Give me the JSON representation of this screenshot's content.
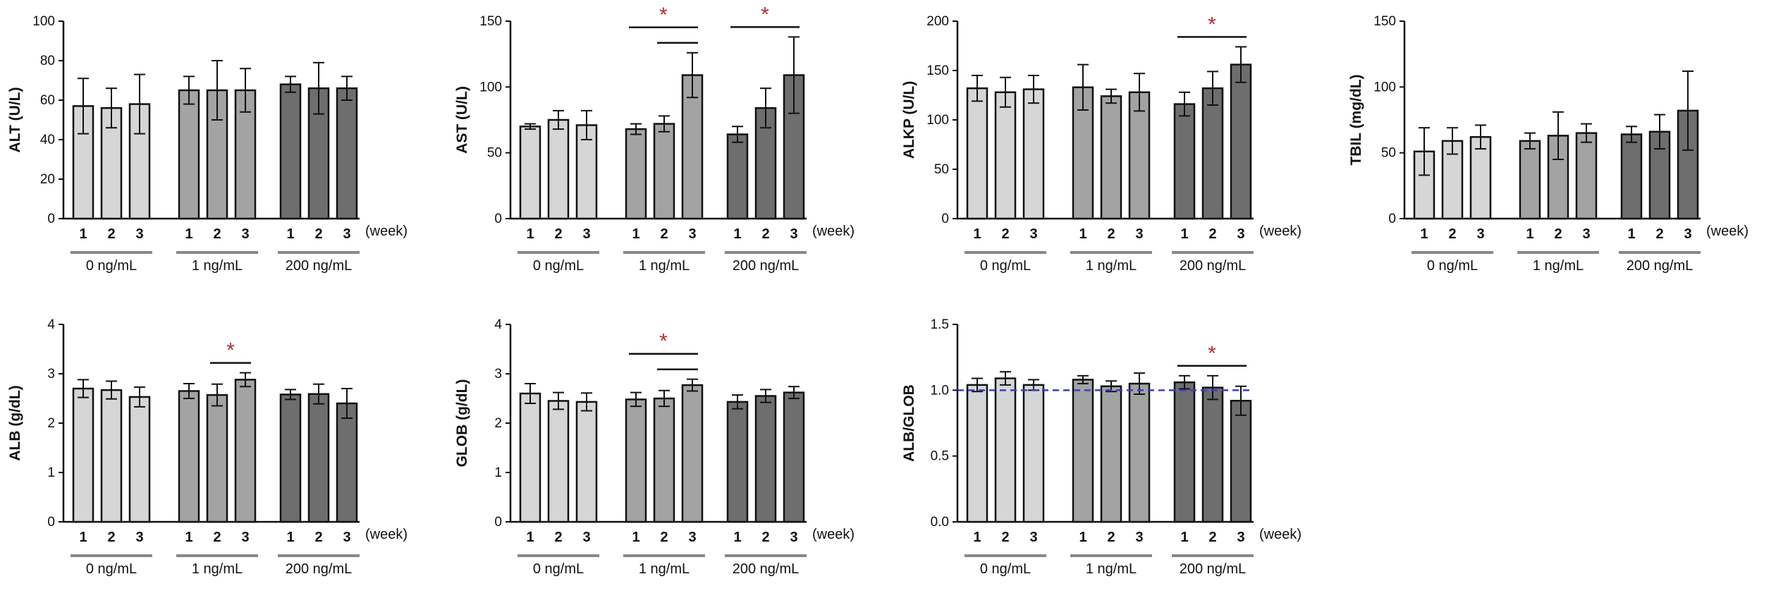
{
  "chart_data": [
    {
      "type": "bar",
      "id": "alt",
      "ylabel": "ALT (U/L)",
      "ylim": [
        0,
        100
      ],
      "yticks": [
        0,
        20,
        40,
        60,
        80,
        100
      ],
      "ytick_labels": [
        "0",
        "20",
        "40",
        "60",
        "80",
        "100"
      ],
      "x_unit": "(week)",
      "week_labels": [
        "1",
        "2",
        "3"
      ],
      "groups": [
        "0 ng/mL",
        "1 ng/mL",
        "200 ng/mL"
      ],
      "values": [
        [
          57,
          56,
          58
        ],
        [
          65,
          65,
          65
        ],
        [
          68,
          66,
          66
        ]
      ],
      "errors": [
        [
          14,
          10,
          15
        ],
        [
          7,
          15,
          11
        ],
        [
          4,
          13,
          6
        ]
      ],
      "significance": []
    },
    {
      "type": "bar",
      "id": "ast",
      "ylabel": "AST (U/L)",
      "ylim": [
        0,
        150
      ],
      "yticks": [
        0,
        50,
        100,
        150
      ],
      "ytick_labels": [
        "0",
        "50",
        "100",
        "150"
      ],
      "x_unit": "(week)",
      "week_labels": [
        "1",
        "2",
        "3"
      ],
      "groups": [
        "0 ng/mL",
        "1 ng/mL",
        "200 ng/mL"
      ],
      "values": [
        [
          70,
          75,
          71
        ],
        [
          68,
          72,
          109
        ],
        [
          64,
          84,
          109
        ]
      ],
      "errors": [
        [
          2,
          7,
          11
        ],
        [
          4,
          6,
          17
        ],
        [
          6,
          15,
          29
        ]
      ],
      "significance": [
        {
          "group": 1,
          "from": 0,
          "to": 2,
          "label": "*"
        },
        {
          "group": 1,
          "from": 1,
          "to": 2,
          "label": ""
        },
        {
          "group": 2,
          "from": 0,
          "to": 2,
          "label": "*"
        }
      ]
    },
    {
      "type": "bar",
      "id": "alkp",
      "ylabel": "ALKP (U/L)",
      "ylim": [
        0,
        200
      ],
      "yticks": [
        0,
        50,
        100,
        150,
        200
      ],
      "ytick_labels": [
        "0",
        "50",
        "100",
        "150",
        "200"
      ],
      "x_unit": "(week)",
      "week_labels": [
        "1",
        "2",
        "3"
      ],
      "groups": [
        "0 ng/mL",
        "1 ng/mL",
        "200 ng/mL"
      ],
      "values": [
        [
          132,
          128,
          131
        ],
        [
          133,
          124,
          128
        ],
        [
          116,
          132,
          156
        ]
      ],
      "errors": [
        [
          13,
          15,
          14
        ],
        [
          23,
          7,
          19
        ],
        [
          12,
          17,
          18
        ]
      ],
      "significance": [
        {
          "group": 2,
          "from": 0,
          "to": 2,
          "label": "*"
        }
      ]
    },
    {
      "type": "bar",
      "id": "tbil",
      "ylabel": "TBIL (mg/dL)",
      "ylim": [
        0,
        150
      ],
      "yticks": [
        0,
        50,
        100,
        150
      ],
      "ytick_labels": [
        "0",
        "50",
        "100",
        "150"
      ],
      "x_unit": "(week)",
      "week_labels": [
        "1",
        "2",
        "3"
      ],
      "groups": [
        "0 ng/mL",
        "1 ng/mL",
        "200 ng/mL"
      ],
      "values": [
        [
          51,
          59,
          62
        ],
        [
          59,
          63,
          65
        ],
        [
          64,
          66,
          82
        ]
      ],
      "errors": [
        [
          18,
          10,
          9
        ],
        [
          6,
          18,
          7
        ],
        [
          6,
          13,
          30
        ]
      ],
      "significance": []
    },
    {
      "type": "bar",
      "id": "alb",
      "ylabel": "ALB (g/dL)",
      "ylim": [
        0,
        4
      ],
      "yticks": [
        0,
        1,
        2,
        3,
        4
      ],
      "ytick_labels": [
        "0",
        "1",
        "2",
        "3",
        "4"
      ],
      "x_unit": "(week)",
      "week_labels": [
        "1",
        "2",
        "3"
      ],
      "groups": [
        "0 ng/mL",
        "1 ng/mL",
        "200 ng/mL"
      ],
      "values": [
        [
          2.7,
          2.67,
          2.53
        ],
        [
          2.65,
          2.57,
          2.88
        ],
        [
          2.58,
          2.59,
          2.4
        ]
      ],
      "errors": [
        [
          0.18,
          0.18,
          0.2
        ],
        [
          0.15,
          0.22,
          0.14
        ],
        [
          0.1,
          0.2,
          0.3
        ]
      ],
      "significance": [
        {
          "group": 1,
          "from": 1,
          "to": 2,
          "label": "*"
        }
      ]
    },
    {
      "type": "bar",
      "id": "glob",
      "ylabel": "GLOB (g/dL)",
      "ylim": [
        0,
        4
      ],
      "yticks": [
        0,
        1,
        2,
        3,
        4
      ],
      "ytick_labels": [
        "0",
        "1",
        "2",
        "3",
        "4"
      ],
      "x_unit": "(week)",
      "week_labels": [
        "1",
        "2",
        "3"
      ],
      "groups": [
        "0 ng/mL",
        "1 ng/mL",
        "200 ng/mL"
      ],
      "values": [
        [
          2.6,
          2.45,
          2.43
        ],
        [
          2.48,
          2.5,
          2.77
        ],
        [
          2.43,
          2.55,
          2.62
        ]
      ],
      "errors": [
        [
          0.2,
          0.17,
          0.18
        ],
        [
          0.14,
          0.16,
          0.12
        ],
        [
          0.14,
          0.13,
          0.12
        ]
      ],
      "significance": [
        {
          "group": 1,
          "from": 0,
          "to": 2,
          "label": "*"
        },
        {
          "group": 1,
          "from": 1,
          "to": 2,
          "label": ""
        }
      ]
    },
    {
      "type": "bar",
      "id": "albglob",
      "ylabel": "ALB/GLOB",
      "ylim": [
        0,
        1.5
      ],
      "yticks": [
        0,
        0.5,
        1.0,
        1.5
      ],
      "ytick_labels": [
        "0.0",
        "0.5",
        "1.0",
        "1.5"
      ],
      "x_unit": "(week)",
      "week_labels": [
        "1",
        "2",
        "3"
      ],
      "groups": [
        "0 ng/mL",
        "1 ng/mL",
        "200 ng/mL"
      ],
      "values": [
        [
          1.04,
          1.09,
          1.04
        ],
        [
          1.08,
          1.03,
          1.05
        ],
        [
          1.06,
          1.02,
          0.92
        ]
      ],
      "errors": [
        [
          0.05,
          0.05,
          0.04
        ],
        [
          0.03,
          0.04,
          0.08
        ],
        [
          0.05,
          0.09,
          0.11
        ]
      ],
      "reference_line": 1.0,
      "significance": [
        {
          "group": 2,
          "from": 0,
          "to": 2,
          "label": "*"
        }
      ]
    }
  ],
  "colors": {
    "groups": [
      "#d6d6d6",
      "#a3a3a3",
      "#6e6e6e"
    ],
    "significance_star": "#b03030",
    "reference_line": "#3a3ad6",
    "underline": "#888888"
  }
}
